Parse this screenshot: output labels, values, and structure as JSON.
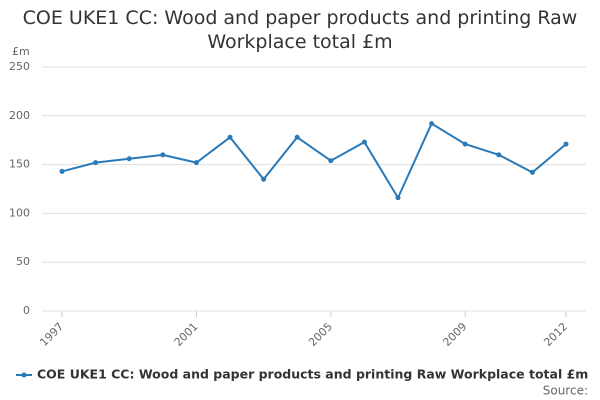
{
  "chart_data": {
    "type": "line",
    "title": "COE UKE1 CC: Wood and paper products and printing Raw Workplace total £m",
    "y_label": "£m",
    "x": [
      1997,
      1998,
      1999,
      2000,
      2001,
      2002,
      2003,
      2004,
      2005,
      2006,
      2007,
      2008,
      2009,
      2010,
      2011,
      2012
    ],
    "series": [
      {
        "name": "COE UKE1 CC: Wood and paper products and printing Raw Workplace total £m",
        "color": "#2a7ab8",
        "values": [
          143,
          152,
          156,
          160,
          152,
          178,
          135,
          178,
          154,
          173,
          116,
          192,
          171,
          160,
          142,
          171
        ]
      }
    ],
    "xlim": [
      1997,
      2012
    ],
    "xticks": [
      1997,
      2001,
      2005,
      2009,
      2012
    ],
    "ylim": [
      0,
      250
    ],
    "yticks": [
      0,
      50,
      100,
      150,
      200,
      250
    ],
    "grid": true,
    "legend": "bottom",
    "source_label": "Source:"
  }
}
